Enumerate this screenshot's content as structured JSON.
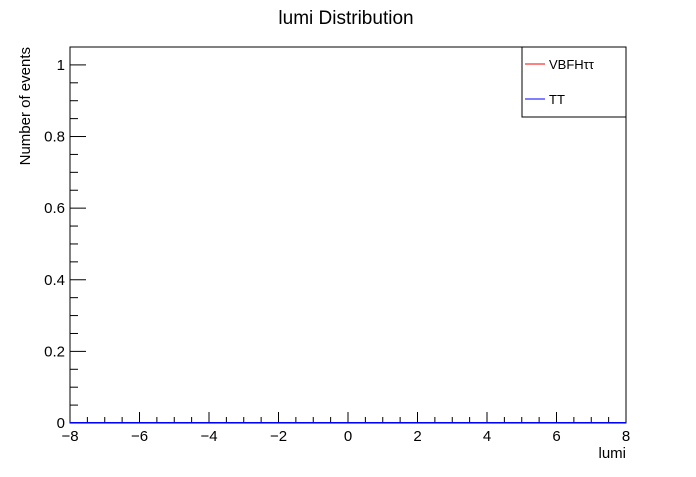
{
  "chart_data": {
    "type": "line",
    "title": "lumi Distribution",
    "xlabel": "lumi",
    "ylabel": "Number of events",
    "xlim": [
      -8,
      8
    ],
    "ylim": [
      0,
      1.05
    ],
    "x_ticks": [
      -8,
      -6,
      -4,
      -2,
      0,
      2,
      4,
      6,
      8
    ],
    "x_tick_labels": [
      "−8",
      "−6",
      "−4",
      "−2",
      "0",
      "2",
      "4",
      "6",
      "8"
    ],
    "y_ticks": [
      0,
      0.2,
      0.4,
      0.6,
      0.8,
      1
    ],
    "y_tick_labels": [
      "0",
      "0.2",
      "0.4",
      "0.6",
      "0.8",
      "1"
    ],
    "grid": false,
    "legend_position": "top-right",
    "series": [
      {
        "name": "VBFHττ",
        "color": "#ff0000",
        "x": [
          -8,
          8
        ],
        "y": [
          0,
          0
        ]
      },
      {
        "name": "TT",
        "color": "#0000ff",
        "x": [
          -8,
          8
        ],
        "y": [
          0,
          0
        ]
      }
    ]
  }
}
